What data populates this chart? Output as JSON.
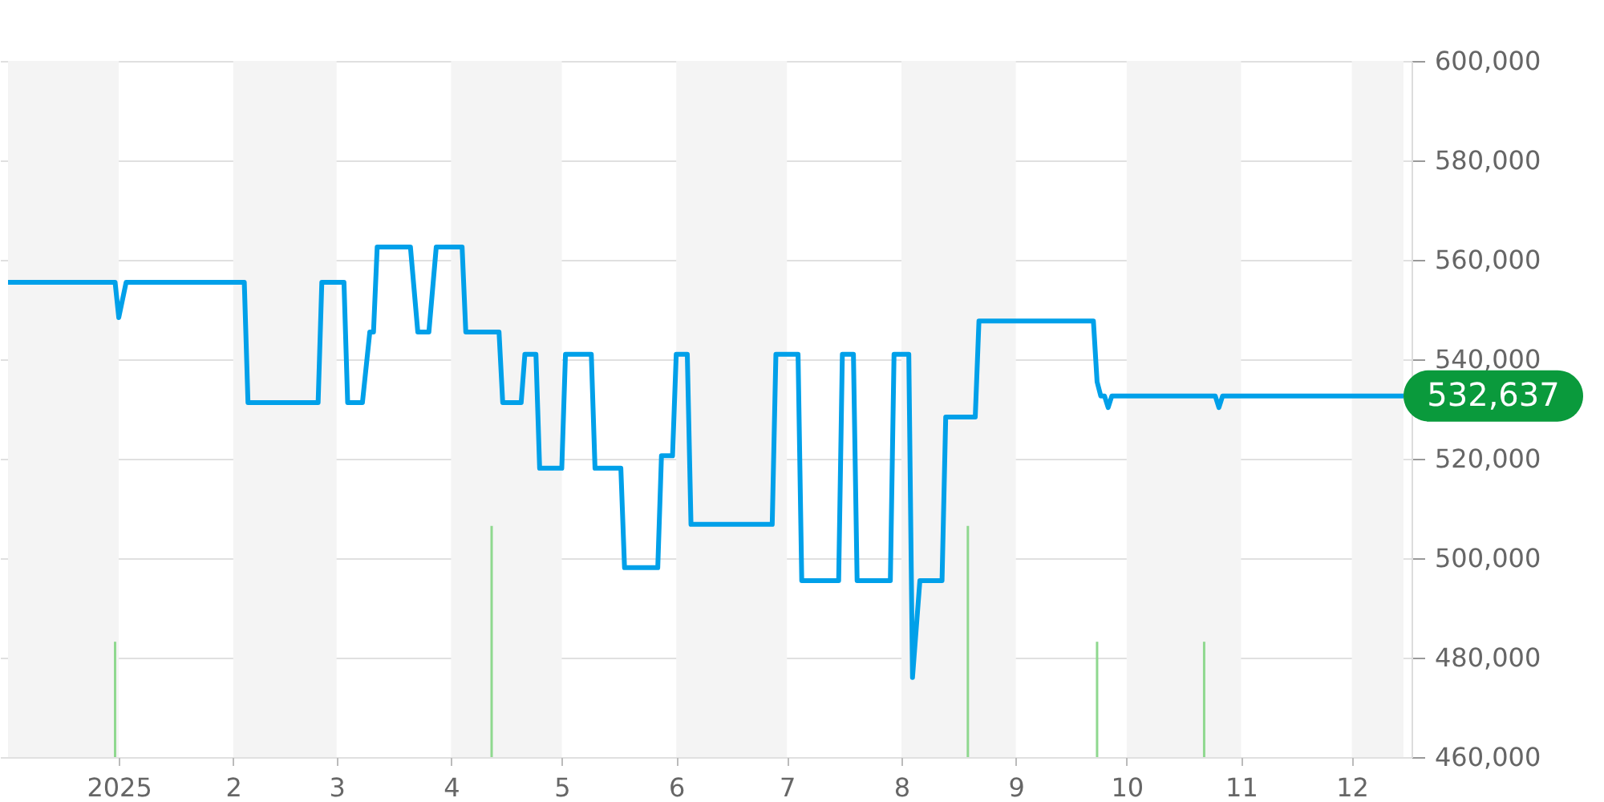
{
  "chart_data": {
    "type": "line",
    "xlim": [
      "2024-12-02",
      "2025-12-15"
    ],
    "xticks": [
      {
        "value": "2025-01-01",
        "label": "2025"
      },
      {
        "value": "2025-02-01",
        "label": "2"
      },
      {
        "value": "2025-03-01",
        "label": "3"
      },
      {
        "value": "2025-04-01",
        "label": "4"
      },
      {
        "value": "2025-05-01",
        "label": "5"
      },
      {
        "value": "2025-06-01",
        "label": "6"
      },
      {
        "value": "2025-07-01",
        "label": "7"
      },
      {
        "value": "2025-08-01",
        "label": "8"
      },
      {
        "value": "2025-09-01",
        "label": "9"
      },
      {
        "value": "2025-10-01",
        "label": "10"
      },
      {
        "value": "2025-11-01",
        "label": "11"
      },
      {
        "value": "2025-12-01",
        "label": "12"
      }
    ],
    "ylim": [
      460000,
      600000
    ],
    "yticks": [
      {
        "value": 460000,
        "label": "460,000"
      },
      {
        "value": 480000,
        "label": "480,000"
      },
      {
        "value": 500000,
        "label": "500,000"
      },
      {
        "value": 520000,
        "label": "520,000"
      },
      {
        "value": 540000,
        "label": "540,000"
      },
      {
        "value": 560000,
        "label": "560,000"
      },
      {
        "value": 580000,
        "label": "580,000"
      },
      {
        "value": 600000,
        "label": "600,000"
      }
    ],
    "grid": "y",
    "marker": "none",
    "line_style": "solid",
    "series": [
      {
        "color": "#00a0e9",
        "x": [
          "2024-12-02",
          "2024-12-31",
          "2025-01-01",
          "2025-01-03",
          "2025-02-04",
          "2025-02-05",
          "2025-02-24",
          "2025-02-25",
          "2025-03-03",
          "2025-03-04",
          "2025-03-08",
          "2025-03-10",
          "2025-03-11",
          "2025-03-12",
          "2025-03-21",
          "2025-03-23",
          "2025-03-26",
          "2025-03-28",
          "2025-04-04",
          "2025-04-05",
          "2025-04-14",
          "2025-04-15",
          "2025-04-20",
          "2025-04-21",
          "2025-04-24",
          "2025-04-25",
          "2025-05-01",
          "2025-05-02",
          "2025-05-09",
          "2025-05-10",
          "2025-05-17",
          "2025-05-18",
          "2025-05-27",
          "2025-05-28",
          "2025-05-31",
          "2025-06-01",
          "2025-06-04",
          "2025-06-05",
          "2025-06-27",
          "2025-06-28",
          "2025-07-04",
          "2025-07-05",
          "2025-07-15",
          "2025-07-16",
          "2025-07-19",
          "2025-07-20",
          "2025-07-29",
          "2025-07-30",
          "2025-08-03",
          "2025-08-04",
          "2025-08-06",
          "2025-08-12",
          "2025-08-13",
          "2025-08-21",
          "2025-08-22",
          "2025-09-22",
          "2025-09-23",
          "2025-09-24",
          "2025-09-25",
          "2025-09-26",
          "2025-09-27",
          "2025-10-25",
          "2025-10-26",
          "2025-10-27",
          "2025-12-15"
        ],
        "values": [
          555500,
          555500,
          548400,
          555500,
          555500,
          531300,
          531300,
          555500,
          555500,
          531300,
          531300,
          545500,
          545500,
          562600,
          562600,
          545500,
          545500,
          562600,
          562600,
          545500,
          545500,
          531300,
          531300,
          541000,
          541000,
          518100,
          518100,
          541000,
          541000,
          518100,
          518100,
          498100,
          498100,
          520600,
          520600,
          541000,
          541000,
          506800,
          506800,
          541000,
          541000,
          495500,
          495500,
          541000,
          541000,
          495500,
          495500,
          541000,
          541000,
          476000,
          495500,
          495500,
          528400,
          528400,
          547700,
          547700,
          535500,
          532637,
          532637,
          530300,
          532637,
          532637,
          530300,
          532637,
          532637
        ]
      },
      {
        "type": "bar",
        "color": "#8fd88f",
        "x": [
          "2024-12-31",
          "2025-04-12",
          "2025-08-19",
          "2025-09-23",
          "2025-10-22"
        ],
        "values": [
          483200,
          506500,
          506500,
          483200,
          483200
        ]
      }
    ],
    "bands": [
      {
        "axis": "x",
        "from": "2024-12-02",
        "to": "2025-01-01",
        "color": "#f4f4f4"
      },
      {
        "axis": "x",
        "from": "2025-02-01",
        "to": "2025-03-01",
        "color": "#f4f4f4"
      },
      {
        "axis": "x",
        "from": "2025-04-01",
        "to": "2025-05-01",
        "color": "#f4f4f4"
      },
      {
        "axis": "x",
        "from": "2025-06-01",
        "to": "2025-07-01",
        "color": "#f4f4f4"
      },
      {
        "axis": "x",
        "from": "2025-08-01",
        "to": "2025-09-01",
        "color": "#f4f4f4"
      },
      {
        "axis": "x",
        "from": "2025-10-01",
        "to": "2025-11-01",
        "color": "#f4f4f4"
      },
      {
        "axis": "x",
        "from": "2025-12-01",
        "to": "2025-12-15",
        "color": "#f4f4f4"
      }
    ],
    "annotations": [
      {
        "text": "532,637",
        "x": "2025-12-15",
        "y": 532637
      }
    ]
  }
}
